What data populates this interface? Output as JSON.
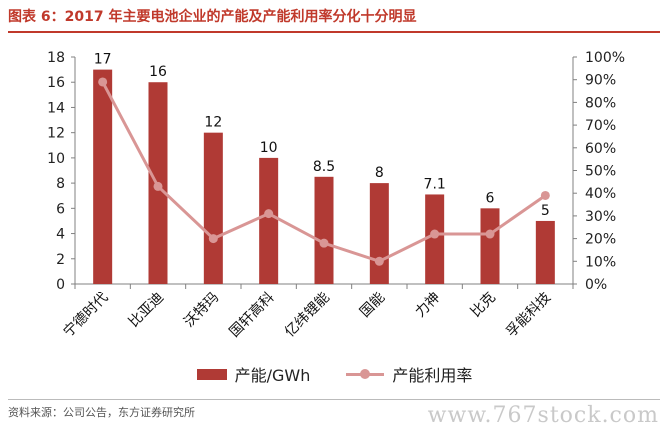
{
  "chart_data": {
    "type": "bar",
    "title": "图表 6：2017 年主要电池企业的产能及产能利用率分化十分明显",
    "categories": [
      "宁德时代",
      "比亚迪",
      "沃特玛",
      "国轩高科",
      "亿纬锂能",
      "国能",
      "力神",
      "比克",
      "孚能科技"
    ],
    "series": [
      {
        "name": "产能/GWh",
        "type": "bar",
        "axis": "left",
        "values": [
          17,
          16,
          12,
          10,
          8.5,
          8,
          7.1,
          6,
          5
        ],
        "data_labels": [
          "17",
          "16",
          "12",
          "10",
          "8.5",
          "8",
          "7.1",
          "6",
          "5"
        ],
        "color": "#b03a35"
      },
      {
        "name": "产能利用率",
        "type": "line",
        "axis": "right",
        "values": [
          0.89,
          0.43,
          0.2,
          0.31,
          0.18,
          0.1,
          0.22,
          0.22,
          0.39
        ],
        "color": "#d99695"
      }
    ],
    "y_left": {
      "ylim": [
        0,
        18
      ],
      "ticks": [
        0,
        2,
        4,
        6,
        8,
        10,
        12,
        14,
        16,
        18
      ],
      "tick_labels": [
        "0",
        "2",
        "4",
        "6",
        "8",
        "10",
        "12",
        "14",
        "16",
        "18"
      ]
    },
    "y_right": {
      "ylim": [
        0,
        1
      ],
      "ticks": [
        0,
        0.1,
        0.2,
        0.3,
        0.4,
        0.5,
        0.6,
        0.7,
        0.8,
        0.9,
        1.0
      ],
      "tick_labels": [
        "0%",
        "10%",
        "20%",
        "30%",
        "40%",
        "50%",
        "60%",
        "70%",
        "80%",
        "90%",
        "100%"
      ]
    },
    "grid": false,
    "legend": "bottom"
  },
  "footer": {
    "source": "资料来源：公司公告，东方证券研究所",
    "watermark": "www.767stock.com"
  },
  "colors": {
    "title": "#c0392b",
    "bar": "#b03a35",
    "line": "#d99695",
    "axis": "#808080"
  }
}
